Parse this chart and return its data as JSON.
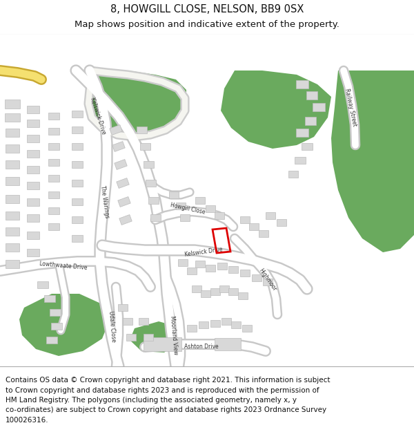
{
  "title_line1": "8, HOWGILL CLOSE, NELSON, BB9 0SX",
  "title_line2": "Map shows position and indicative extent of the property.",
  "footer_lines": [
    "Contains OS data © Crown copyright and database right 2021. This information is subject",
    "to Crown copyright and database rights 2023 and is reproduced with the permission of",
    "HM Land Registry. The polygons (including the associated geometry, namely x, y",
    "co-ordinates) are subject to Crown copyright and database rights 2023 Ordnance Survey",
    "100026316."
  ],
  "map_bg_color": "#f0f0ec",
  "road_color": "#ffffff",
  "road_border_color": "#cccccc",
  "green_area_color": "#6aaa5e",
  "building_color": "#d8d8d8",
  "building_border_color": "#bbbbbb",
  "property_color": "#dd0000",
  "header_bg": "#ffffff",
  "footer_bg": "#ffffff",
  "divider_color": "#aaaaaa",
  "title_fontsize": 10.5,
  "subtitle_fontsize": 9.5,
  "footer_fontsize": 7.5,
  "road_label_fontsize": 5.5
}
